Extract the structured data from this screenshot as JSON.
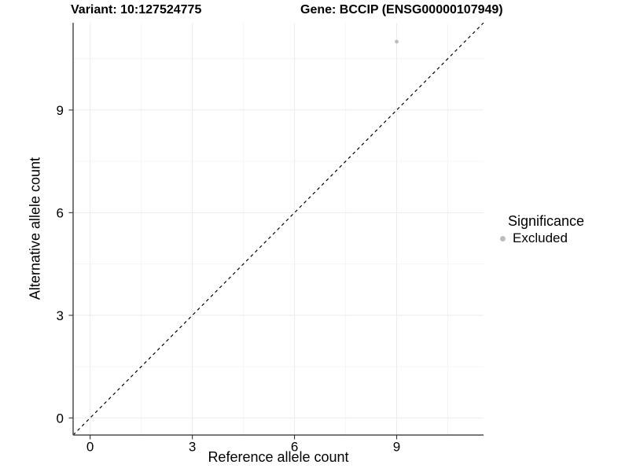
{
  "titles": {
    "variant": "Variant: 10:127524775",
    "gene": "Gene: BCCIP (ENSG00000107949)"
  },
  "chart_data": {
    "type": "scatter",
    "title": "Variant: 10:127524775  /  Gene: BCCIP (ENSG00000107949)",
    "xlabel": "Reference allele count",
    "ylabel": "Alternative allele count",
    "xlim": [
      -0.5,
      11.55
    ],
    "ylim": [
      -0.5,
      11.55
    ],
    "x_ticks": [
      0,
      3,
      6,
      9
    ],
    "y_ticks": [
      0,
      3,
      6,
      9
    ],
    "minor_ticks": [
      1.5,
      4.5,
      7.5,
      10.5
    ],
    "grid": "major and minor, light gray on white",
    "points": [
      {
        "x": 9,
        "y": 11,
        "series": "Excluded"
      }
    ],
    "identity_line": {
      "style": "dashed",
      "from": [
        -0.5,
        -0.5
      ],
      "to": [
        11.55,
        11.55
      ]
    },
    "legend": {
      "title": "Significance",
      "position": "right",
      "items": [
        {
          "label": "Excluded",
          "color": "#bdbdbd"
        }
      ]
    }
  },
  "colors": {
    "background": "#ffffff",
    "point": "#bdbdbd",
    "grid_major": "#ebebeb",
    "grid_minor": "#f5f5f5",
    "axis_line": "#4d4d4d",
    "tick_mark": "#333333",
    "dashed_line": "#000000",
    "text": "#000000"
  }
}
